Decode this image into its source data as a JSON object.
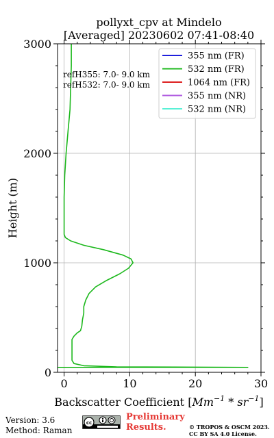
{
  "chart_data": {
    "type": "line",
    "title_lines": [
      "pollyxt_cpv at Mindelo",
      "[Averaged] 20230602 07:41-08:40"
    ],
    "xlabel": "Backscatter Coefficient",
    "xlabel_unit_base": "Mm",
    "xlabel_unit_exp1": "−1",
    "xlabel_unit_mid": " * sr",
    "xlabel_unit_exp2": "−1",
    "ylabel": "Height (m)",
    "xlim": [
      -1,
      30
    ],
    "ylim": [
      0,
      3000
    ],
    "x_ticks": [
      0,
      10,
      20,
      30
    ],
    "x_tick_labels": [
      "0",
      "10",
      "20",
      "30"
    ],
    "y_ticks": [
      0,
      1000,
      2000,
      3000
    ],
    "y_tick_labels": [
      "0",
      "1000",
      "2000",
      "3000"
    ],
    "grid": true,
    "legend_position": "top-right",
    "legend": [
      {
        "label": "355 nm (FR)",
        "color": "#1f1fdd"
      },
      {
        "label": "532 nm (FR)",
        "color": "#1cb81c"
      },
      {
        "label": "1064 nm (FR)",
        "color": "#dd1f1f"
      },
      {
        "label": "355 nm (NR)",
        "color": "#b05ce0"
      },
      {
        "label": "532 nm (NR)",
        "color": "#59f0d6"
      }
    ],
    "annotations": [
      "refH355:  7.0- 9.0 km",
      "refH532:  7.0- 9.0 km"
    ],
    "series": [
      {
        "name": "532 nm (FR)",
        "color": "#1cb81c",
        "points": [
          [
            1.1,
            3000
          ],
          [
            1.1,
            2800
          ],
          [
            0.9,
            2400
          ],
          [
            0.6,
            2200
          ],
          [
            0.3,
            2000
          ],
          [
            0.1,
            1800
          ],
          [
            0.0,
            1600
          ],
          [
            0.0,
            1400
          ],
          [
            0.0,
            1260
          ],
          [
            0.2,
            1230
          ],
          [
            1.0,
            1200
          ],
          [
            3.0,
            1160
          ],
          [
            6.0,
            1120
          ],
          [
            9.0,
            1070
          ],
          [
            10.2,
            1035
          ],
          [
            10.5,
            1000
          ],
          [
            9.8,
            950
          ],
          [
            8.5,
            900
          ],
          [
            6.5,
            840
          ],
          [
            4.8,
            780
          ],
          [
            3.8,
            720
          ],
          [
            3.3,
            660
          ],
          [
            3.0,
            600
          ],
          [
            3.0,
            540
          ],
          [
            2.8,
            480
          ],
          [
            2.7,
            420
          ],
          [
            2.5,
            380
          ],
          [
            2.0,
            360
          ],
          [
            1.5,
            330
          ],
          [
            1.2,
            300
          ],
          [
            1.2,
            240
          ],
          [
            1.2,
            170
          ],
          [
            1.2,
            110
          ],
          [
            1.5,
            80
          ],
          [
            3.0,
            60
          ],
          [
            8.0,
            50
          ],
          [
            28.0,
            45
          ],
          [
            -1.0,
            45
          ]
        ]
      }
    ]
  },
  "footer": {
    "version": "Version: 3.6",
    "method": "Method: Raman",
    "preliminary_line1": "Preliminary",
    "preliminary_line2": "Results.",
    "copyright_line1": "© TROPOS & OSCM 2023.",
    "copyright_line2": "CC BY SA 4.0 License."
  }
}
